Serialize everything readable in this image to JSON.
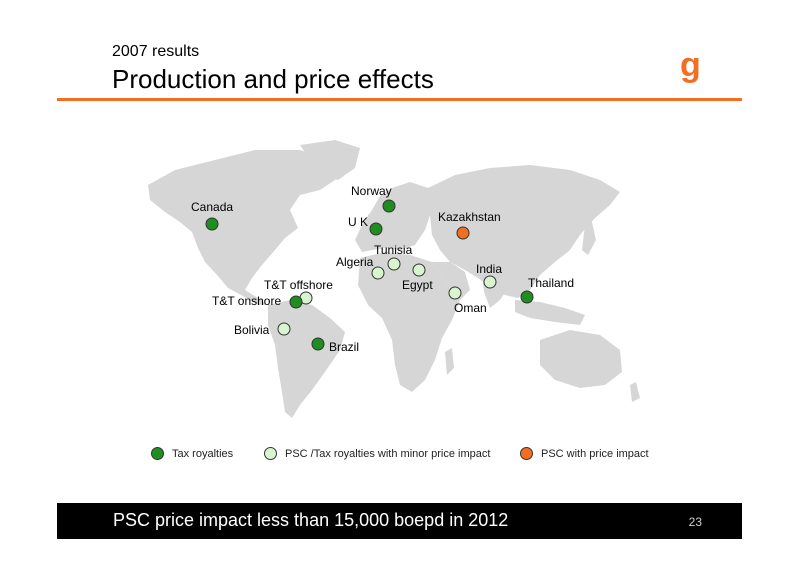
{
  "header": {
    "subtitle": "2007 results",
    "title": "Production and price effects",
    "logo_text": "g"
  },
  "colors": {
    "accent": "#f26f21",
    "tax_royalties": "#1e8f1e",
    "psc_minor": "#d8f5d0",
    "psc_price": "#f26f21",
    "land": "#d6d6d6"
  },
  "countries": [
    {
      "name": "Canada",
      "category": "tax_royalties"
    },
    {
      "name": "Norway",
      "category": "tax_royalties"
    },
    {
      "name": "U K",
      "category": "tax_royalties"
    },
    {
      "name": "Kazakhstan",
      "category": "psc_price"
    },
    {
      "name": "Tunisia",
      "category": "psc_minor"
    },
    {
      "name": "Algeria",
      "category": "psc_minor"
    },
    {
      "name": "Egypt",
      "category": "psc_minor"
    },
    {
      "name": "India",
      "category": "psc_minor"
    },
    {
      "name": "Thailand",
      "category": "tax_royalties"
    },
    {
      "name": "Oman",
      "category": "psc_minor"
    },
    {
      "name": "T&T offshore",
      "category": "psc_minor"
    },
    {
      "name": "T&T onshore",
      "category": "tax_royalties"
    },
    {
      "name": "Bolivia",
      "category": "psc_minor"
    },
    {
      "name": "Brazil",
      "category": "tax_royalties"
    }
  ],
  "legend": {
    "tax_royalties": "Tax royalties",
    "psc_minor": "PSC /Tax royalties with minor price impact",
    "psc_price": "PSC with price impact"
  },
  "footer": {
    "message": "PSC price impact less than 15,000 boepd in 2012",
    "page_number": "23"
  }
}
